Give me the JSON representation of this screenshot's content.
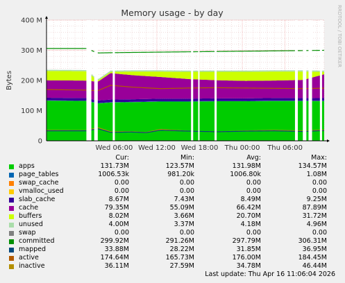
{
  "title": "Memory usage - by day",
  "watermark": "RRDTOOL / TOBI OETIKER",
  "ylabel": "Bytes",
  "footer": "Last update: Thu Apr 16 11:06:04 2026",
  "legend_headers": {
    "cur": "Cur:",
    "min": "Min:",
    "avg": "Avg:",
    "max": "Max:"
  },
  "legend": [
    {
      "name": "apps",
      "color": "#00cc00",
      "cur": "131.73M",
      "min": "123.57M",
      "avg": "131.98M",
      "max": "134.57M"
    },
    {
      "name": "page_tables",
      "color": "#0066b3",
      "cur": "1006.53k",
      "min": "981.20k",
      "avg": "1006.80k",
      "max": "1.08M"
    },
    {
      "name": "swap_cache",
      "color": "#ff8000",
      "cur": "0.00",
      "min": "0.00",
      "avg": "0.00",
      "max": "0.00"
    },
    {
      "name": "vmalloc_used",
      "color": "#ffcc00",
      "cur": "0.00",
      "min": "0.00",
      "avg": "0.00",
      "max": "0.00"
    },
    {
      "name": "slab_cache",
      "color": "#330099",
      "cur": "8.67M",
      "min": "7.43M",
      "avg": "8.49M",
      "max": "9.25M"
    },
    {
      "name": "cache",
      "color": "#990099",
      "cur": "79.35M",
      "min": "55.09M",
      "avg": "66.42M",
      "max": "87.89M"
    },
    {
      "name": "buffers",
      "color": "#ccff00",
      "cur": "8.02M",
      "min": "3.66M",
      "avg": "20.70M",
      "max": "31.72M"
    },
    {
      "name": "unused",
      "color": "#aaddaa",
      "cur": "4.00M",
      "min": "3.37M",
      "avg": "4.18M",
      "max": "4.96M"
    },
    {
      "name": "swap",
      "color": "#808080",
      "cur": "0.00",
      "min": "0.00",
      "avg": "0.00",
      "max": "0.00"
    },
    {
      "name": "committed",
      "color": "#008f00",
      "cur": "299.92M",
      "min": "291.26M",
      "avg": "297.79M",
      "max": "306.31M"
    },
    {
      "name": "mapped",
      "color": "#00487d",
      "cur": "33.88M",
      "min": "28.22M",
      "avg": "31.85M",
      "max": "36.95M"
    },
    {
      "name": "active",
      "color": "#b35a00",
      "cur": "174.64M",
      "min": "165.73M",
      "avg": "176.00M",
      "max": "184.45M"
    },
    {
      "name": "inactive",
      "color": "#b38f00",
      "cur": "36.11M",
      "min": "27.59M",
      "avg": "34.78M",
      "max": "46.44M"
    }
  ],
  "chart_data": {
    "type": "area",
    "title": "Memory usage - by day",
    "ylabel": "Bytes",
    "ylim": [
      0,
      400
    ],
    "yunit": "M",
    "yticks": [
      0,
      100,
      200,
      300,
      400
    ],
    "ytick_labels": [
      "0",
      "100 M",
      "200 M",
      "300 M",
      "400 M"
    ],
    "xlim": [
      0,
      33
    ],
    "x_unit": "hours since start of window",
    "xticks": [
      {
        "x": 9.5,
        "label": "Wed 06:00"
      },
      {
        "x": 15.5,
        "label": "Wed 12:00"
      },
      {
        "x": 21.5,
        "label": "Wed 18:00"
      },
      {
        "x": 27.5,
        "label": "Thu 00:00"
      },
      {
        "x": 33.5,
        "label": "Thu 06:00"
      }
    ],
    "gaps": [
      [
        5.6,
        6.3
      ],
      [
        6.7,
        7.2
      ],
      [
        9.3,
        9.6
      ],
      [
        20.3,
        20.6
      ],
      [
        21.3,
        21.5
      ],
      [
        23.6,
        23.9
      ],
      [
        34.9,
        35.3
      ],
      [
        36.0,
        36.5
      ],
      [
        36.8,
        37.3
      ],
      [
        38.4,
        38.7
      ]
    ],
    "stack_order": [
      "apps",
      "page_tables",
      "slab_cache",
      "cache",
      "buffers",
      "unused"
    ],
    "series": [
      {
        "name": "apps",
        "kind": "area",
        "color": "#00cc00",
        "x": [
          0,
          5.6,
          7.2,
          9,
          12,
          16,
          20,
          24,
          28,
          32,
          36,
          39
        ],
        "y": [
          133,
          132,
          124,
          127,
          128,
          130,
          130,
          131,
          131,
          132,
          132,
          131.7
        ]
      },
      {
        "name": "page_tables",
        "kind": "area",
        "color": "#0066b3",
        "x": [
          0,
          39
        ],
        "y": [
          1,
          1
        ]
      },
      {
        "name": "slab_cache",
        "kind": "area",
        "color": "#330099",
        "x": [
          0,
          39
        ],
        "y": [
          8.5,
          8.7
        ]
      },
      {
        "name": "cache",
        "kind": "area",
        "color": "#990099",
        "x": [
          0,
          5.6,
          7.2,
          9,
          12,
          16,
          20,
          24,
          28,
          32,
          36,
          39
        ],
        "y": [
          58,
          58,
          62,
          88,
          80,
          72,
          65,
          60,
          58,
          58,
          60,
          79
        ]
      },
      {
        "name": "buffers",
        "kind": "area",
        "color": "#ccff00",
        "x": [
          0,
          5.6,
          7.2,
          9,
          12,
          16,
          20,
          24,
          28,
          32,
          36,
          39
        ],
        "y": [
          31,
          31,
          4,
          4,
          12,
          18,
          24,
          28,
          30,
          30,
          28,
          8
        ]
      },
      {
        "name": "unused",
        "kind": "area",
        "color": "#aaddaa",
        "x": [
          0,
          39
        ],
        "y": [
          4,
          4
        ]
      },
      {
        "name": "committed",
        "kind": "line",
        "color": "#008f00",
        "x": [
          0,
          5.6,
          7.2,
          9,
          12,
          16,
          20,
          24,
          28,
          32,
          36,
          39
        ],
        "y": [
          306,
          306,
          291,
          292,
          293,
          294,
          295,
          296,
          297,
          298,
          299,
          300
        ]
      },
      {
        "name": "active",
        "kind": "line",
        "color": "#b35a00",
        "x": [
          0,
          5.6,
          7.2,
          9,
          12,
          16,
          20,
          24,
          28,
          32,
          36,
          39
        ],
        "y": [
          170,
          168,
          166,
          184,
          178,
          173,
          175,
          176,
          175,
          174,
          173,
          174.6
        ]
      },
      {
        "name": "inactive",
        "kind": "line",
        "color": "#b38f00",
        "x": [
          0,
          5.6,
          7.2,
          9,
          12,
          14,
          16,
          20,
          24,
          28,
          32,
          36,
          39
        ],
        "y": [
          35,
          34,
          44,
          30,
          30,
          28,
          38,
          32,
          30,
          33,
          35,
          33,
          36
        ]
      },
      {
        "name": "mapped",
        "kind": "line",
        "color": "#00487d",
        "x": [
          0,
          5.6,
          7.2,
          9,
          12,
          14,
          16,
          20,
          24,
          28,
          32,
          36,
          39
        ],
        "y": [
          33,
          33,
          40,
          28,
          29,
          27,
          35,
          32,
          30,
          32,
          33,
          31,
          34
        ]
      }
    ]
  }
}
